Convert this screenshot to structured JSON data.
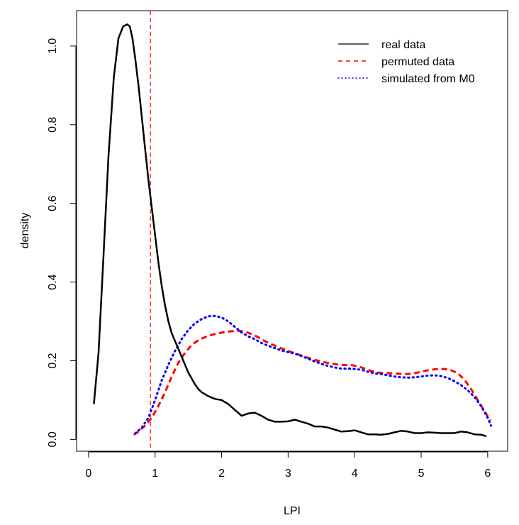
{
  "chart_data": {
    "type": "line",
    "xlabel": "LPI",
    "ylabel": "density",
    "xlim": [
      -0.18,
      6.3
    ],
    "ylim": [
      -0.03,
      1.09
    ],
    "xticks": [
      0,
      1,
      2,
      3,
      4,
      5,
      6
    ],
    "yticks": [
      0.0,
      0.2,
      0.4,
      0.6,
      0.8,
      1.0
    ],
    "xtick_labels": [
      "0",
      "1",
      "2",
      "3",
      "4",
      "5",
      "6"
    ],
    "ytick_labels": [
      "0.0",
      "0.2",
      "0.4",
      "0.6",
      "0.8",
      "1.0"
    ],
    "grid": false,
    "legend_position": "top-right",
    "reference_line": {
      "axis": "x",
      "value": 0.93,
      "color": "#ff0000",
      "style": "dashed"
    },
    "series": [
      {
        "name": "real data",
        "color": "#000000",
        "style": "solid",
        "x": [
          0.08,
          0.15,
          0.22,
          0.3,
          0.38,
          0.45,
          0.52,
          0.58,
          0.62,
          0.66,
          0.7,
          0.75,
          0.8,
          0.85,
          0.9,
          0.95,
          1.0,
          1.05,
          1.1,
          1.15,
          1.2,
          1.25,
          1.3,
          1.35,
          1.4,
          1.45,
          1.5,
          1.55,
          1.6,
          1.65,
          1.7,
          1.8,
          1.9,
          2.0,
          2.1,
          2.2,
          2.3,
          2.4,
          2.5,
          2.6,
          2.7,
          2.8,
          2.9,
          3.0,
          3.1,
          3.2,
          3.3,
          3.4,
          3.5,
          3.6,
          3.7,
          3.8,
          3.9,
          4.0,
          4.1,
          4.2,
          4.3,
          4.4,
          4.5,
          4.6,
          4.7,
          4.8,
          4.9,
          5.0,
          5.1,
          5.2,
          5.3,
          5.4,
          5.5,
          5.6,
          5.7,
          5.8,
          5.9,
          5.98
        ],
        "y": [
          0.09,
          0.22,
          0.45,
          0.72,
          0.92,
          1.02,
          1.05,
          1.055,
          1.05,
          1.02,
          0.97,
          0.9,
          0.82,
          0.74,
          0.66,
          0.59,
          0.52,
          0.45,
          0.39,
          0.34,
          0.3,
          0.27,
          0.25,
          0.23,
          0.21,
          0.19,
          0.17,
          0.155,
          0.14,
          0.128,
          0.12,
          0.11,
          0.103,
          0.1,
          0.09,
          0.075,
          0.06,
          0.066,
          0.068,
          0.06,
          0.05,
          0.045,
          0.045,
          0.046,
          0.05,
          0.045,
          0.04,
          0.033,
          0.033,
          0.03,
          0.025,
          0.02,
          0.021,
          0.023,
          0.018,
          0.013,
          0.013,
          0.012,
          0.014,
          0.018,
          0.022,
          0.02,
          0.016,
          0.016,
          0.018,
          0.017,
          0.016,
          0.016,
          0.016,
          0.02,
          0.018,
          0.013,
          0.012,
          0.008
        ]
      },
      {
        "name": "permuted data",
        "color": "#ff0000",
        "style": "dashed",
        "x": [
          0.68,
          0.75,
          0.85,
          0.95,
          1.05,
          1.15,
          1.25,
          1.35,
          1.45,
          1.55,
          1.65,
          1.75,
          1.85,
          1.95,
          2.05,
          2.15,
          2.25,
          2.35,
          2.45,
          2.55,
          2.65,
          2.75,
          2.85,
          2.95,
          3.05,
          3.15,
          3.25,
          3.35,
          3.45,
          3.55,
          3.65,
          3.75,
          3.85,
          3.95,
          4.05,
          4.15,
          4.25,
          4.35,
          4.45,
          4.55,
          4.65,
          4.75,
          4.85,
          4.95,
          5.05,
          5.15,
          5.25,
          5.35,
          5.45,
          5.55,
          5.65,
          5.75,
          5.85,
          5.95,
          6.04
        ],
        "y": [
          0.012,
          0.02,
          0.035,
          0.055,
          0.085,
          0.12,
          0.16,
          0.195,
          0.22,
          0.24,
          0.252,
          0.26,
          0.266,
          0.27,
          0.273,
          0.275,
          0.276,
          0.274,
          0.268,
          0.26,
          0.25,
          0.242,
          0.235,
          0.228,
          0.222,
          0.216,
          0.21,
          0.205,
          0.2,
          0.196,
          0.193,
          0.19,
          0.189,
          0.189,
          0.186,
          0.18,
          0.174,
          0.17,
          0.169,
          0.168,
          0.167,
          0.166,
          0.167,
          0.17,
          0.174,
          0.177,
          0.179,
          0.179,
          0.176,
          0.168,
          0.152,
          0.128,
          0.1,
          0.072,
          0.048
        ]
      },
      {
        "name": "simulated from M0",
        "color": "#0000ff",
        "style": "dotted",
        "x": [
          0.7,
          0.8,
          0.9,
          1.0,
          1.1,
          1.2,
          1.3,
          1.4,
          1.5,
          1.6,
          1.7,
          1.8,
          1.9,
          2.0,
          2.1,
          2.2,
          2.3,
          2.4,
          2.5,
          2.6,
          2.7,
          2.8,
          2.9,
          3.0,
          3.1,
          3.2,
          3.3,
          3.4,
          3.5,
          3.6,
          3.7,
          3.8,
          3.9,
          4.0,
          4.1,
          4.2,
          4.3,
          4.4,
          4.5,
          4.6,
          4.7,
          4.8,
          4.9,
          5.0,
          5.1,
          5.2,
          5.3,
          5.4,
          5.5,
          5.6,
          5.7,
          5.8,
          5.9,
          6.0,
          6.05
        ],
        "y": [
          0.015,
          0.03,
          0.055,
          0.1,
          0.15,
          0.19,
          0.225,
          0.255,
          0.278,
          0.295,
          0.306,
          0.313,
          0.314,
          0.31,
          0.3,
          0.286,
          0.272,
          0.262,
          0.255,
          0.245,
          0.238,
          0.232,
          0.226,
          0.222,
          0.218,
          0.212,
          0.205,
          0.198,
          0.192,
          0.187,
          0.183,
          0.18,
          0.18,
          0.179,
          0.177,
          0.172,
          0.168,
          0.166,
          0.163,
          0.16,
          0.158,
          0.157,
          0.158,
          0.16,
          0.162,
          0.163,
          0.161,
          0.156,
          0.148,
          0.138,
          0.125,
          0.108,
          0.085,
          0.055,
          0.035
        ]
      }
    ]
  }
}
